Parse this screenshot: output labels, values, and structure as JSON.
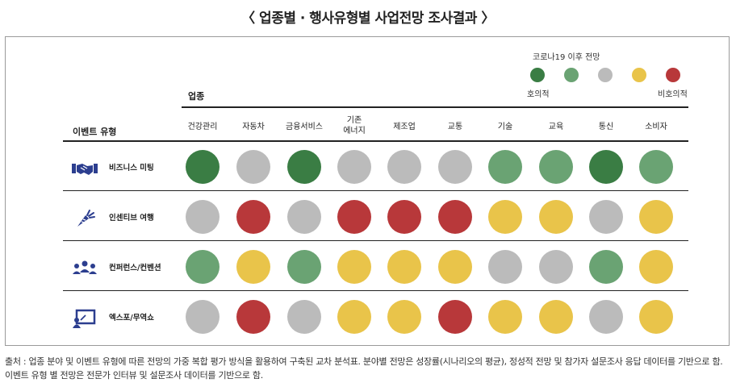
{
  "title": "〈 업종별 · 행사유형별 사업전망 조사결과 〉",
  "legend": {
    "title": "코로나19 이후 전망",
    "colors": [
      "#3a7d44",
      "#6aa373",
      "#bbbbbb",
      "#e9c44a",
      "#b8383a"
    ],
    "left_label": "호의적",
    "right_label": "비호의적"
  },
  "header": {
    "industry": "업종",
    "event_type": "이벤트 유형"
  },
  "source": "출처 : 업종 분야 및 이벤트 유형에 따른 전망의 가중 복합 평가 방식을 활용하여 구축된 교차 분석표. 분야별 전망은 성장률(시나리오의 평균), 정성적 전망 및 참가자 설문조사 응답 데이터를 기반으로 함. 이벤트 유형 별 전망은 전문가 인터뷰 및 설문조사 데이터를 기반으로 함.",
  "chart_data": {
    "type": "heatmap",
    "title": "〈 업종별 · 행사유형별 사업전망 조사결과 〉",
    "categories": [
      "건강관리",
      "자동차",
      "금융서비스",
      "기존\n에너지",
      "제조업",
      "교통",
      "기술",
      "교육",
      "통신",
      "소비자"
    ],
    "rows": [
      {
        "name": "비즈니스 미팅",
        "icon": "handshake-icon",
        "values": [
          1,
          3,
          1,
          3,
          3,
          3,
          2,
          2,
          1,
          2
        ]
      },
      {
        "name": "인센티브 여행",
        "icon": "carrot-icon",
        "values": [
          3,
          5,
          3,
          5,
          5,
          5,
          4,
          4,
          3,
          4
        ]
      },
      {
        "name": "컨퍼런스/컨벤션",
        "icon": "audience-icon",
        "values": [
          2,
          4,
          2,
          4,
          4,
          4,
          3,
          3,
          2,
          4
        ]
      },
      {
        "name": "엑스포/무역쇼",
        "icon": "presentation-icon",
        "values": [
          3,
          5,
          3,
          4,
          4,
          5,
          4,
          4,
          3,
          4
        ]
      }
    ],
    "scale": {
      "1": "#3a7d44",
      "2": "#6aa373",
      "3": "#bbbbbb",
      "4": "#e9c44a",
      "5": "#b8383a"
    },
    "legend_title": "코로나19 이후 전망",
    "legend_ends": [
      "호의적",
      "비호의적"
    ]
  }
}
